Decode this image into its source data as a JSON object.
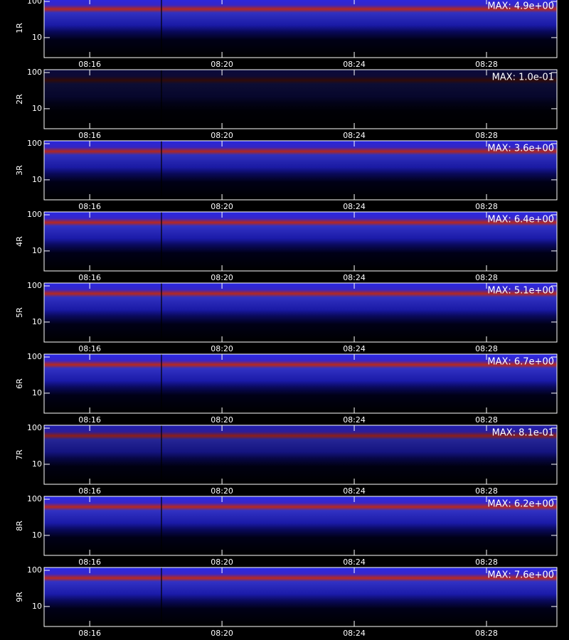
{
  "chart_data": {
    "type": "spectrogram",
    "xlim": [
      14.62,
      30.13
    ],
    "xticks": [
      {
        "value": 16,
        "label": "08:16"
      },
      {
        "value": 20,
        "label": "08:20"
      },
      {
        "value": 24,
        "label": "08:24"
      },
      {
        "value": 28,
        "label": "08:28"
      }
    ],
    "ylog": true,
    "ylim": [
      2.8,
      120
    ],
    "yticks": [
      10,
      100
    ],
    "panels": [
      {
        "label": "1R",
        "max": {
          "value": 4.9,
          "label": "MAX: 4.9e+00"
        }
      },
      {
        "label": "2R",
        "max": {
          "value": 0.1,
          "label": "MAX: 1.0e-01"
        }
      },
      {
        "label": "3R",
        "max": {
          "value": 3.6,
          "label": "MAX: 3.6e+00"
        }
      },
      {
        "label": "4R",
        "max": {
          "value": 6.4,
          "label": "MAX: 6.4e+00"
        }
      },
      {
        "label": "5R",
        "max": {
          "value": 5.1,
          "label": "MAX: 5.1e+00"
        }
      },
      {
        "label": "6R",
        "max": {
          "value": 6.7,
          "label": "MAX: 6.7e+00"
        }
      },
      {
        "label": "7R",
        "max": {
          "value": 0.81,
          "label": "MAX: 8.1e-01"
        }
      },
      {
        "label": "8R",
        "max": {
          "value": 6.2,
          "label": "MAX: 6.2e+00"
        }
      },
      {
        "label": "9R",
        "max": {
          "value": 7.6,
          "label": "MAX: 7.6e+00"
        }
      }
    ]
  }
}
